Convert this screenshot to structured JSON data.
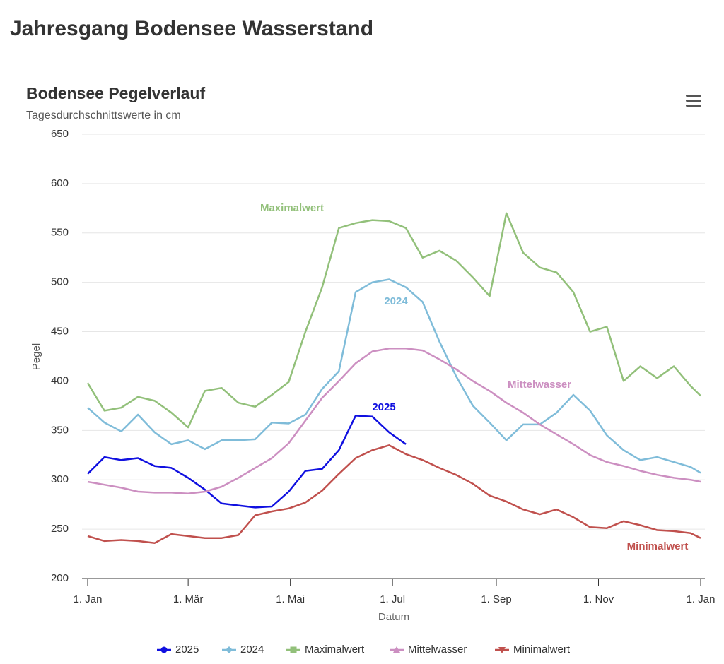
{
  "page_title": "Jahresgang Bodensee Wasserstand",
  "chart_data": {
    "type": "line",
    "title": "Bodensee Pegelverlauf",
    "subtitle": "Tagesdurchschnittswerte in cm",
    "x_label": "Datum",
    "y_label": "Pegel",
    "x": [
      0,
      10,
      20,
      30,
      40,
      50,
      60,
      70,
      80,
      90,
      100,
      110,
      120,
      130,
      140,
      150,
      160,
      170,
      180,
      190,
      200,
      210,
      220,
      230,
      240,
      250,
      260,
      270,
      280,
      290,
      300,
      310,
      320,
      330,
      340,
      350,
      360,
      366
    ],
    "xlim": [
      0,
      366
    ],
    "xticks": [
      {
        "value": 0,
        "label": "1. Jan"
      },
      {
        "value": 60,
        "label": "1. Mär"
      },
      {
        "value": 121,
        "label": "1. Mai"
      },
      {
        "value": 182,
        "label": "1. Jul"
      },
      {
        "value": 244,
        "label": "1. Sep"
      },
      {
        "value": 305,
        "label": "1. Nov"
      },
      {
        "value": 366,
        "label": "1. Jan"
      }
    ],
    "ylim": [
      200,
      650
    ],
    "yticks": [
      200,
      250,
      300,
      350,
      400,
      450,
      500,
      550,
      600,
      650
    ],
    "grid": true,
    "legend": "bottom",
    "series": [
      {
        "name": "2025",
        "color": "#1010e0",
        "marker": "circle",
        "values": [
          306,
          323,
          320,
          322,
          314,
          312,
          302,
          290,
          276,
          274,
          272,
          273,
          288,
          309,
          311,
          330,
          365,
          364,
          348,
          336,
          null,
          null,
          null,
          null,
          null,
          null,
          null,
          null,
          null,
          null,
          null,
          null,
          null,
          null,
          null,
          null,
          null,
          null
        ]
      },
      {
        "name": "2024",
        "color": "#7fbcd9",
        "marker": "diamond",
        "values": [
          373,
          358,
          349,
          366,
          348,
          336,
          340,
          331,
          340,
          340,
          341,
          358,
          357,
          366,
          392,
          410,
          490,
          500,
          503,
          495,
          480,
          440,
          405,
          375,
          358,
          340,
          356,
          356,
          368,
          386,
          370,
          345,
          330,
          320,
          323,
          318,
          313,
          307
        ]
      },
      {
        "name": "Maximalwert",
        "color": "#92c07a",
        "marker": "square",
        "values": [
          398,
          370,
          373,
          384,
          380,
          368,
          353,
          390,
          393,
          378,
          374,
          386,
          399,
          450,
          495,
          555,
          560,
          563,
          562,
          555,
          525,
          532,
          522,
          505,
          486,
          570,
          530,
          515,
          510,
          490,
          450,
          455,
          400,
          415,
          403,
          415,
          395,
          385
        ]
      },
      {
        "name": "Mittelwasser",
        "color": "#cc8fc1",
        "marker": "triangle",
        "values": [
          298,
          295,
          292,
          288,
          287,
          287,
          286,
          288,
          293,
          302,
          312,
          322,
          337,
          360,
          383,
          400,
          418,
          430,
          433,
          433,
          431,
          422,
          412,
          400,
          390,
          378,
          368,
          356,
          346,
          336,
          325,
          318,
          314,
          309,
          305,
          302,
          300,
          298
        ]
      },
      {
        "name": "Minimalwert",
        "color": "#c0504d",
        "marker": "triangle-down",
        "values": [
          243,
          238,
          239,
          238,
          236,
          245,
          243,
          241,
          241,
          244,
          264,
          268,
          271,
          277,
          289,
          306,
          322,
          330,
          335,
          326,
          320,
          312,
          305,
          296,
          284,
          278,
          270,
          265,
          270,
          262,
          252,
          251,
          258,
          254,
          249,
          248,
          246,
          241
        ]
      }
    ]
  }
}
